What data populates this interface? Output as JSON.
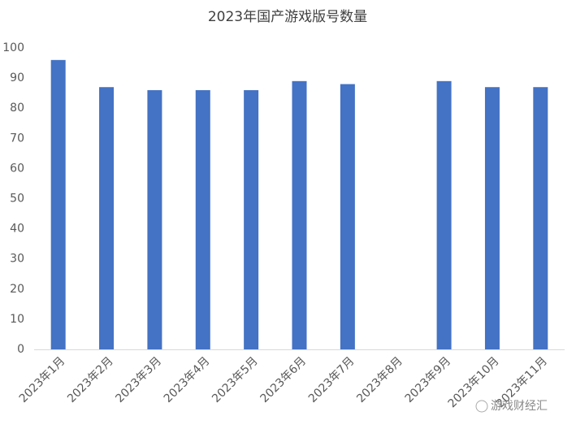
{
  "chart_data": {
    "type": "bar",
    "title": "2023年国产游戏版号数量",
    "categories": [
      "2023年1月",
      "2023年2月",
      "2023年3月",
      "2023年4月",
      "2023年5月",
      "2023年6月",
      "2023年7月",
      "2023年8月",
      "2023年9月",
      "2023年10月",
      "2023年11月"
    ],
    "values": [
      96,
      87,
      86,
      86,
      86,
      89,
      88,
      0,
      89,
      87,
      87
    ],
    "color": "#4472c4",
    "ylim": [
      0,
      100
    ],
    "yticks": [
      0,
      10,
      20,
      30,
      40,
      50,
      60,
      70,
      80,
      90,
      100
    ],
    "grid": false
  },
  "watermark": "游戏财经汇"
}
